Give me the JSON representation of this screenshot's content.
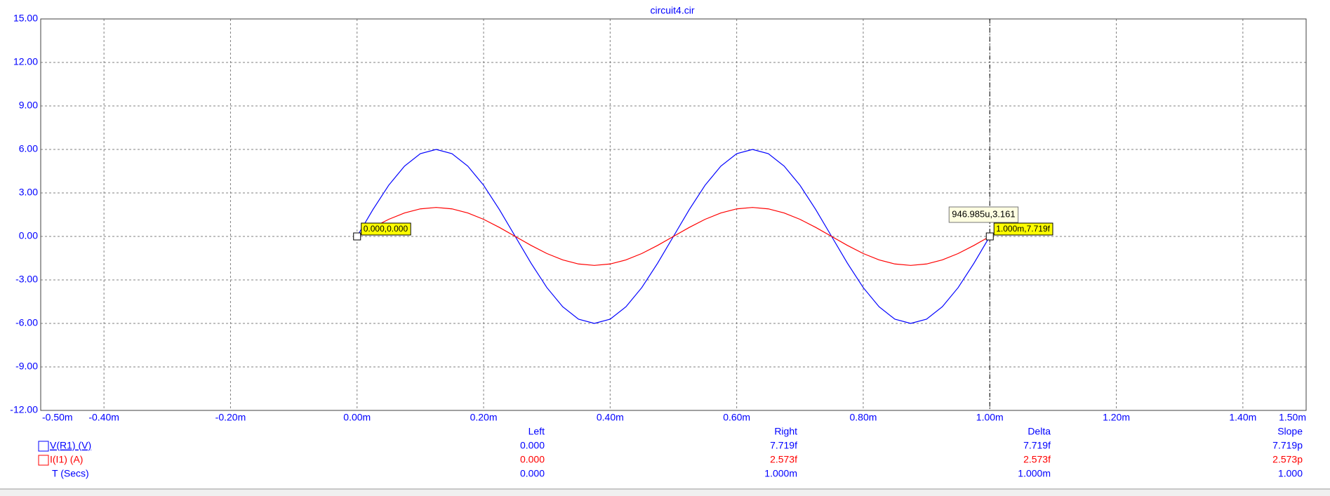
{
  "chart_data": {
    "type": "line",
    "title": "circuit4.cir",
    "x": [
      0,
      2.5e-05,
      5e-05,
      7.5e-05,
      0.0001,
      0.000125,
      0.00015,
      0.000175,
      0.0002,
      0.000225,
      0.00025,
      0.000275,
      0.0003,
      0.000325,
      0.00035,
      0.000375,
      0.0004,
      0.000425,
      0.00045,
      0.000475,
      0.0005,
      0.000525,
      0.00055,
      0.000575,
      0.0006,
      0.000625,
      0.00065,
      0.000675,
      0.0007,
      0.000725,
      0.00075,
      0.000775,
      0.0008,
      0.000825,
      0.00085,
      0.000875,
      0.0009,
      0.000925,
      0.00095,
      0.000975,
      0.001
    ],
    "series": [
      {
        "name": "V(R1) (V)",
        "color": "#0000ff",
        "values": [
          0,
          1.85,
          3.53,
          4.85,
          5.71,
          6,
          5.71,
          4.85,
          3.53,
          1.85,
          0,
          -1.85,
          -3.53,
          -4.85,
          -5.71,
          -6,
          -5.71,
          -4.85,
          -3.53,
          -1.85,
          0,
          1.85,
          3.53,
          4.85,
          5.71,
          6,
          5.71,
          4.85,
          3.53,
          1.85,
          0,
          -1.85,
          -3.53,
          -4.85,
          -5.71,
          -6,
          -5.71,
          -4.85,
          -3.53,
          -1.85,
          0
        ],
        "cursor_values": [
          "0.000",
          "7.719f",
          "7.719f",
          "7.719p"
        ]
      },
      {
        "name": "I(I1) (A)",
        "color": "#ff0000",
        "values": [
          0,
          0.62,
          1.18,
          1.62,
          1.9,
          2,
          1.9,
          1.62,
          1.18,
          0.62,
          0,
          -0.62,
          -1.18,
          -1.62,
          -1.9,
          -2,
          -1.9,
          -1.62,
          -1.18,
          -0.62,
          0,
          0.62,
          1.18,
          1.62,
          1.9,
          2,
          1.9,
          1.62,
          1.18,
          0.62,
          0,
          -0.62,
          -1.18,
          -1.62,
          -1.9,
          -2,
          -1.9,
          -1.62,
          -1.18,
          -0.62,
          0
        ],
        "cursor_values": [
          "0.000",
          "2.573f",
          "2.573f",
          "2.573p"
        ]
      }
    ],
    "x_row": {
      "name": "T (Secs)",
      "cursor_values": [
        "0.000",
        "1.000m",
        "1.000m",
        "1.000"
      ]
    },
    "cursor_columns": [
      "Left",
      "Right",
      "Delta",
      "Slope"
    ],
    "left_cursor_label": "0.000,0.000",
    "right_cursor_label": "1.000m,7.719f",
    "tooltip": "946.985u,3.161",
    "xlim": [
      -0.0005,
      0.0015
    ],
    "ylim": [
      -12,
      15
    ],
    "xticks": [
      {
        "value": -0.0005,
        "label": "-0.50m"
      },
      {
        "value": -0.0004,
        "label": "-0.40m"
      },
      {
        "value": -0.0002,
        "label": "-0.20m"
      },
      {
        "value": 0,
        "label": "0.00m"
      },
      {
        "value": 0.0002,
        "label": "0.20m"
      },
      {
        "value": 0.0004,
        "label": "0.40m"
      },
      {
        "value": 0.0006,
        "label": "0.60m"
      },
      {
        "value": 0.0008,
        "label": "0.80m"
      },
      {
        "value": 0.001,
        "label": "1.00m"
      },
      {
        "value": 0.0012,
        "label": "1.20m"
      },
      {
        "value": 0.0014,
        "label": "1.40m"
      },
      {
        "value": 0.0015,
        "label": "1.50m"
      }
    ],
    "yticks": [
      {
        "value": 15,
        "label": "15.00"
      },
      {
        "value": 12,
        "label": "12.00"
      },
      {
        "value": 9,
        "label": "9.00"
      },
      {
        "value": 6,
        "label": "6.00"
      },
      {
        "value": 3,
        "label": "3.00"
      },
      {
        "value": 0,
        "label": "0.00"
      },
      {
        "value": -3,
        "label": "-3.00"
      },
      {
        "value": -6,
        "label": "-6.00"
      },
      {
        "value": -9,
        "label": "-9.00"
      },
      {
        "value": -12,
        "label": "-12.00"
      }
    ],
    "grid": true
  }
}
